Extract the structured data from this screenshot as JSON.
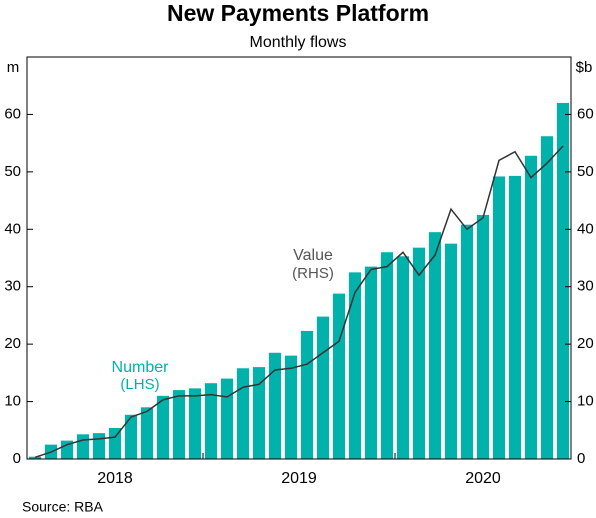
{
  "chart_data": {
    "type": "bar",
    "title": "New Payments Platform",
    "subtitle": "Monthly flows",
    "y_label": "m",
    "y2_label": "$b",
    "source": "Source:  RBA",
    "year_labels": [
      "2018",
      "2019",
      "2020"
    ],
    "categories": [
      null,
      null,
      null,
      null,
      null,
      null,
      null,
      null,
      null,
      null,
      null,
      null,
      null,
      null,
      null,
      null,
      null,
      null,
      null,
      null,
      null,
      null,
      null,
      null,
      null,
      null,
      null,
      null,
      null,
      null,
      null,
      null,
      null,
      null
    ],
    "series": [
      {
        "name": "Number",
        "name_note": "(LHS)",
        "color": "#00b2a9",
        "type": "bar",
        "values": [
          0.4,
          2.5,
          3.2,
          4.3,
          4.5,
          5.4,
          7.7,
          9.0,
          11.0,
          12.0,
          12.3,
          13.2,
          14.0,
          15.8,
          16.0,
          18.5,
          18.0,
          22.3,
          24.8,
          28.8,
          32.5,
          33.5,
          36.0,
          35.3,
          36.8,
          39.5,
          37.5,
          40.8,
          42.5,
          49.2,
          49.3,
          52.8,
          56.2,
          62.0
        ]
      },
      {
        "name": "Value",
        "name_note": "(RHS)",
        "color": "#333333",
        "type": "line",
        "axis": "y2",
        "values": [
          0.3,
          1.2,
          2.5,
          3.3,
          3.5,
          3.8,
          7.3,
          8.3,
          10.3,
          11.0,
          11.0,
          11.2,
          10.8,
          12.5,
          13.0,
          15.5,
          15.8,
          16.5,
          18.5,
          20.5,
          29.0,
          33.0,
          33.5,
          36.0,
          32.0,
          35.5,
          43.5,
          40.0,
          42.0,
          52.0,
          53.5,
          49.0,
          51.5,
          54.5
        ]
      }
    ],
    "ylim": [
      0,
      70
    ],
    "yticks": [
      0,
      10,
      20,
      30,
      40,
      50,
      60
    ],
    "y2lim": [
      0,
      70
    ],
    "y2ticks": [
      0,
      10,
      20,
      30,
      40,
      50,
      60
    ],
    "grid": false
  }
}
